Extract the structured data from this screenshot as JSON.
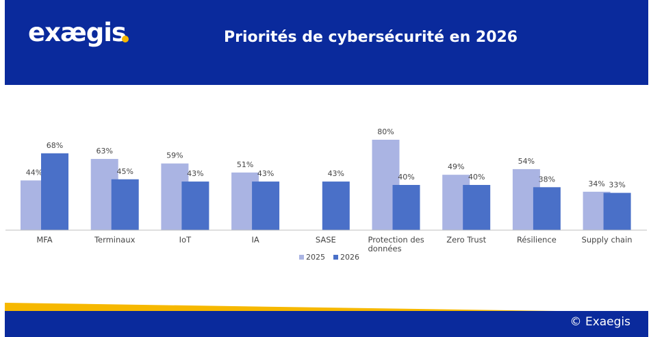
{
  "header": {
    "logo_text": "exægis",
    "title": "Priorités de cybersécurité en 2026",
    "background_color": "#0a2a9c",
    "logo_dot_color": "#f6b800"
  },
  "footer": {
    "copyright": "© Exaegis",
    "band_color": "#0a2a9c",
    "accent_color": "#f6b800"
  },
  "chart_data": {
    "type": "bar",
    "title": "Priorités de cybersécurité en 2026",
    "categories": [
      "MFA",
      "Terminaux",
      "IoT",
      "IA",
      "SASE",
      "Protection des données",
      "Zero Trust",
      "Résilience",
      "Supply chain"
    ],
    "category_lines": [
      [
        "MFA"
      ],
      [
        "Terminaux"
      ],
      [
        "IoT"
      ],
      [
        "IA"
      ],
      [
        "SASE"
      ],
      [
        "Protection des",
        "données"
      ],
      [
        "Zero Trust"
      ],
      [
        "Résilience"
      ],
      [
        "Supply chain"
      ]
    ],
    "series": [
      {
        "name": "2025",
        "color": "#aab4e3",
        "values": [
          44,
          63,
          59,
          51,
          null,
          80,
          49,
          54,
          34
        ],
        "labels": [
          "44%",
          "63%",
          "59%",
          "51%",
          "",
          "80%",
          "49%",
          "54%",
          "34%"
        ]
      },
      {
        "name": "2026",
        "color": "#4a70c8",
        "values": [
          68,
          45,
          43,
          43,
          43,
          40,
          40,
          38,
          33
        ],
        "labels": [
          "68%",
          "45%",
          "43%",
          "43%",
          "43%",
          "40%",
          "40%",
          "38%",
          "33%"
        ]
      }
    ],
    "ylim": [
      0,
      100
    ],
    "legend_position": "bottom",
    "grid": false
  }
}
